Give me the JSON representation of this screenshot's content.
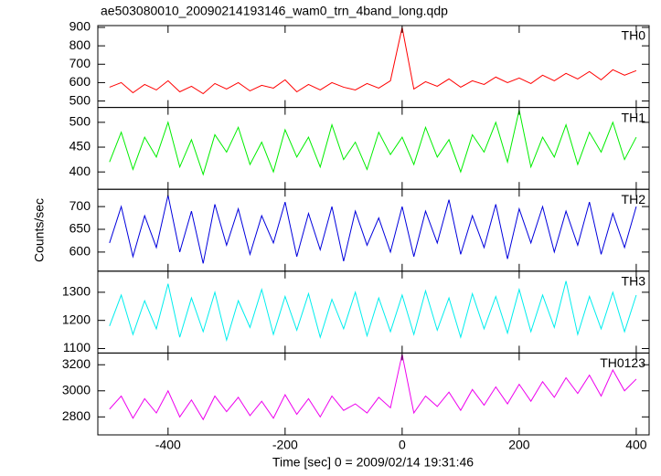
{
  "title": "ae503080010_20090214193146_wam0_trn_4band_long.qdp",
  "y_label": "Counts/sec",
  "x_label": "Time [sec] 0 = 2009/02/14 19:31:46",
  "chart_data": [
    {
      "type": "line",
      "xlim": [
        -520,
        422
      ],
      "ylim": [
        465,
        910
      ],
      "yticks": [
        500,
        600,
        700,
        800,
        900
      ],
      "xticks": [
        -400,
        -200,
        0,
        200,
        400
      ],
      "x": [
        -500,
        -480,
        -460,
        -440,
        -420,
        -400,
        -380,
        -360,
        -340,
        -320,
        -300,
        -280,
        -260,
        -240,
        -220,
        -200,
        -180,
        -160,
        -140,
        -120,
        -100,
        -80,
        -60,
        -40,
        -20,
        0,
        20,
        40,
        60,
        80,
        100,
        120,
        140,
        160,
        180,
        200,
        220,
        240,
        260,
        280,
        300,
        320,
        340,
        360,
        380,
        400
      ],
      "series": [
        {
          "name": "TH0",
          "color": "#ff0000",
          "values": [
            575,
            600,
            545,
            590,
            560,
            610,
            550,
            580,
            540,
            595,
            565,
            600,
            555,
            585,
            570,
            615,
            550,
            590,
            560,
            600,
            575,
            560,
            595,
            570,
            610,
            900,
            565,
            605,
            580,
            620,
            575,
            610,
            590,
            630,
            600,
            625,
            595,
            640,
            610,
            650,
            620,
            660,
            615,
            670,
            640,
            665
          ]
        }
      ]
    },
    {
      "type": "line",
      "xlim": [
        -520,
        422
      ],
      "ylim": [
        365,
        530
      ],
      "yticks": [
        400,
        450,
        500
      ],
      "xticks": [
        -400,
        -200,
        0,
        200,
        400
      ],
      "x": [
        -500,
        -480,
        -460,
        -440,
        -420,
        -400,
        -380,
        -360,
        -340,
        -320,
        -300,
        -280,
        -260,
        -240,
        -220,
        -200,
        -180,
        -160,
        -140,
        -120,
        -100,
        -80,
        -60,
        -40,
        -20,
        0,
        20,
        40,
        60,
        80,
        100,
        120,
        140,
        160,
        180,
        200,
        220,
        240,
        260,
        280,
        300,
        320,
        340,
        360,
        380,
        400
      ],
      "series": [
        {
          "name": "TH1",
          "color": "#00ee00",
          "values": [
            420,
            480,
            405,
            470,
            430,
            500,
            410,
            465,
            395,
            475,
            440,
            490,
            415,
            460,
            400,
            485,
            430,
            470,
            410,
            495,
            425,
            460,
            405,
            480,
            435,
            470,
            415,
            490,
            430,
            465,
            400,
            475,
            440,
            500,
            420,
            525,
            410,
            470,
            430,
            495,
            415,
            480,
            440,
            500,
            425,
            470
          ]
        }
      ]
    },
    {
      "type": "line",
      "xlim": [
        -520,
        422
      ],
      "ylim": [
        558,
        738
      ],
      "yticks": [
        600,
        650,
        700
      ],
      "xticks": [
        -400,
        -200,
        0,
        200,
        400
      ],
      "x": [
        -500,
        -480,
        -460,
        -440,
        -420,
        -400,
        -380,
        -360,
        -340,
        -320,
        -300,
        -280,
        -260,
        -240,
        -220,
        -200,
        -180,
        -160,
        -140,
        -120,
        -100,
        -80,
        -60,
        -40,
        -20,
        0,
        20,
        40,
        60,
        80,
        100,
        120,
        140,
        160,
        180,
        200,
        220,
        240,
        260,
        280,
        300,
        320,
        340,
        360,
        380,
        400
      ],
      "series": [
        {
          "name": "TH2",
          "color": "#0000dd",
          "values": [
            620,
            700,
            590,
            680,
            610,
            725,
            600,
            690,
            575,
            705,
            615,
            695,
            595,
            680,
            620,
            710,
            590,
            685,
            605,
            700,
            580,
            690,
            615,
            675,
            600,
            700,
            590,
            690,
            620,
            715,
            595,
            680,
            610,
            705,
            585,
            695,
            620,
            700,
            600,
            690,
            615,
            710,
            595,
            685,
            610,
            700
          ]
        }
      ]
    },
    {
      "type": "line",
      "xlim": [
        -520,
        422
      ],
      "ylim": [
        1084,
        1375
      ],
      "yticks": [
        1100,
        1200,
        1300
      ],
      "xticks": [
        -400,
        -200,
        0,
        200,
        400
      ],
      "x": [
        -500,
        -480,
        -460,
        -440,
        -420,
        -400,
        -380,
        -360,
        -340,
        -320,
        -300,
        -280,
        -260,
        -240,
        -220,
        -200,
        -180,
        -160,
        -140,
        -120,
        -100,
        -80,
        -60,
        -40,
        -20,
        0,
        20,
        40,
        60,
        80,
        100,
        120,
        140,
        160,
        180,
        200,
        220,
        240,
        260,
        280,
        300,
        320,
        340,
        360,
        380,
        400
      ],
      "series": [
        {
          "name": "TH3",
          "color": "#00eeee",
          "values": [
            1180,
            1290,
            1150,
            1270,
            1170,
            1330,
            1140,
            1280,
            1160,
            1300,
            1130,
            1270,
            1175,
            1310,
            1150,
            1285,
            1165,
            1295,
            1140,
            1275,
            1170,
            1300,
            1145,
            1280,
            1160,
            1290,
            1150,
            1305,
            1165,
            1280,
            1140,
            1295,
            1170,
            1285,
            1155,
            1310,
            1160,
            1290,
            1175,
            1340,
            1150,
            1285,
            1170,
            1300,
            1160,
            1290
          ]
        }
      ]
    },
    {
      "type": "line",
      "xlim": [
        -520,
        422
      ],
      "ylim": [
        2662,
        3290
      ],
      "yticks": [
        2800,
        3000,
        3200
      ],
      "xticks": [
        -400,
        -200,
        0,
        200,
        400
      ],
      "x": [
        -500,
        -480,
        -460,
        -440,
        -420,
        -400,
        -380,
        -360,
        -340,
        -320,
        -300,
        -280,
        -260,
        -240,
        -220,
        -200,
        -180,
        -160,
        -140,
        -120,
        -100,
        -80,
        -60,
        -40,
        -20,
        0,
        20,
        40,
        60,
        80,
        100,
        120,
        140,
        160,
        180,
        200,
        220,
        240,
        260,
        280,
        300,
        320,
        340,
        360,
        380,
        400
      ],
      "series": [
        {
          "name": "TH0123",
          "color": "#ee00ee",
          "values": [
            2860,
            2960,
            2790,
            2940,
            2830,
            3000,
            2800,
            2930,
            2780,
            2960,
            2840,
            2950,
            2810,
            2920,
            2790,
            2970,
            2820,
            2940,
            2800,
            2960,
            2850,
            2900,
            2830,
            2950,
            2870,
            3280,
            2830,
            2960,
            2880,
            2990,
            2850,
            3010,
            2890,
            3030,
            2900,
            3050,
            2920,
            3070,
            2950,
            3100,
            2980,
            3120,
            2960,
            3160,
            3000,
            3090
          ]
        }
      ]
    }
  ]
}
